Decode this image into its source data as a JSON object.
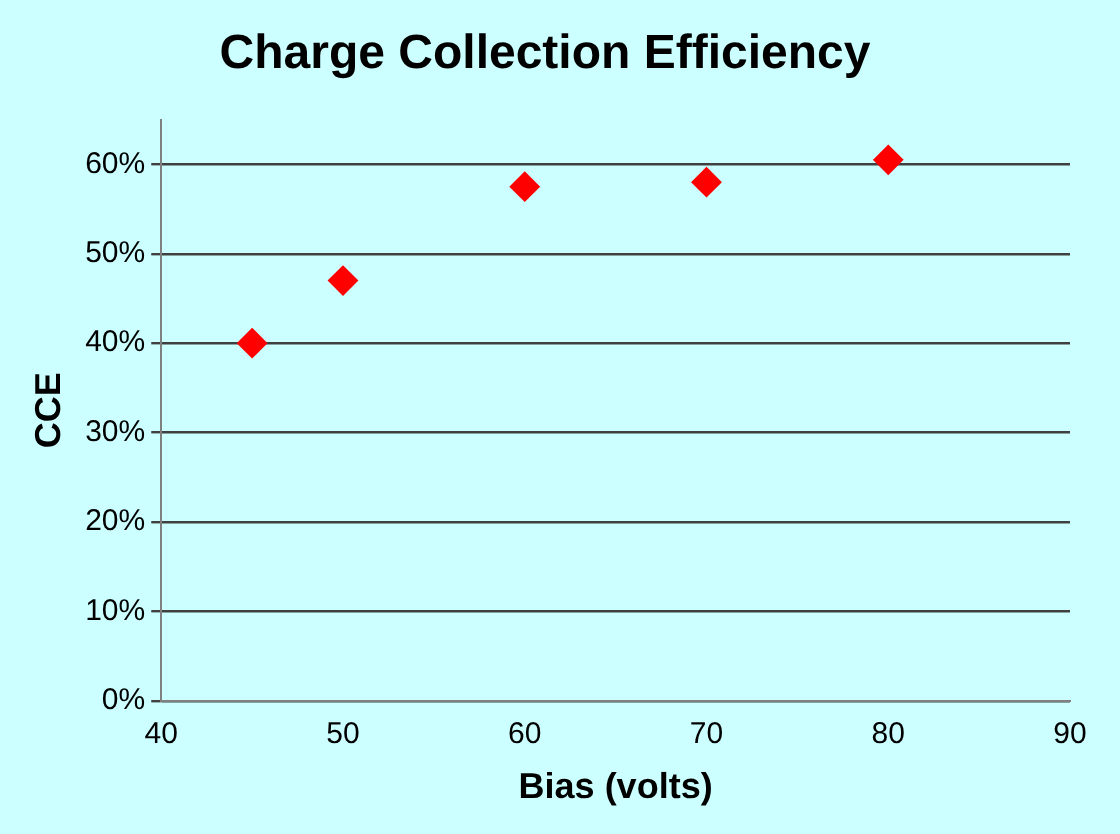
{
  "chart_data": {
    "type": "scatter",
    "title": "Charge Collection Efficiency",
    "xlabel": "Bias (volts)",
    "ylabel": "CCE",
    "x": [
      45,
      50,
      60,
      70,
      80
    ],
    "series": [
      {
        "color": "#ff0000",
        "values": [
          40,
          47,
          57.5,
          58,
          60.5
        ]
      }
    ],
    "xlim": [
      40,
      90
    ],
    "xticks": [
      40,
      50,
      60,
      70,
      80,
      90
    ],
    "ylim": [
      0,
      65
    ],
    "yticks": [
      {
        "value": 0,
        "label": "0%"
      },
      {
        "value": 10,
        "label": "10%"
      },
      {
        "value": 20,
        "label": "20%"
      },
      {
        "value": 30,
        "label": "30%"
      },
      {
        "value": 40,
        "label": "40%"
      },
      {
        "value": 50,
        "label": "50%"
      },
      {
        "value": 60,
        "label": "60%"
      }
    ],
    "grid": "y",
    "marker": "diamond",
    "legend": false
  }
}
